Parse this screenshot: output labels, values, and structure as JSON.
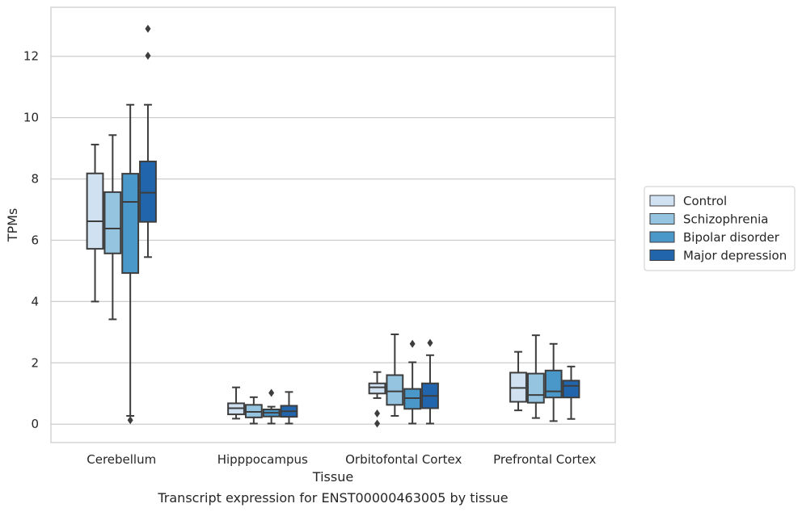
{
  "chart_data": {
    "type": "box",
    "caption": "Transcript expression for ENST00000463005 by tissue",
    "xlabel": "Tissue",
    "ylabel": "TPMs",
    "ylim": [
      -0.6,
      13.6
    ],
    "yticks": [
      0,
      2,
      4,
      6,
      8,
      10,
      12
    ],
    "grid": "horizontal",
    "legend_position": "right",
    "categories": [
      "Cerebellum",
      "Hipppocampus",
      "Orbitofontal Cortex",
      "Prefrontal Cortex"
    ],
    "series": [
      {
        "name": "Control",
        "color": "#d0e1f2",
        "boxes": [
          {
            "whisker_low": 4.0,
            "q1": 5.72,
            "median": 6.62,
            "q3": 8.18,
            "whisker_high": 9.12,
            "outliers": []
          },
          {
            "whisker_low": 0.18,
            "q1": 0.32,
            "median": 0.52,
            "q3": 0.68,
            "whisker_high": 1.2,
            "outliers": []
          },
          {
            "whisker_low": 0.85,
            "q1": 1.0,
            "median": 1.2,
            "q3": 1.33,
            "whisker_high": 1.7,
            "outliers": [
              0.35,
              0.02
            ]
          },
          {
            "whisker_low": 0.45,
            "q1": 0.73,
            "median": 1.18,
            "q3": 1.68,
            "whisker_high": 2.36,
            "outliers": []
          }
        ]
      },
      {
        "name": "Schizophrenia",
        "color": "#94c4df",
        "boxes": [
          {
            "whisker_low": 3.42,
            "q1": 5.57,
            "median": 6.38,
            "q3": 7.57,
            "whisker_high": 9.43,
            "outliers": []
          },
          {
            "whisker_low": 0.02,
            "q1": 0.22,
            "median": 0.4,
            "q3": 0.63,
            "whisker_high": 0.88,
            "outliers": []
          },
          {
            "whisker_low": 0.27,
            "q1": 0.63,
            "median": 1.07,
            "q3": 1.6,
            "whisker_high": 2.93,
            "outliers": []
          },
          {
            "whisker_low": 0.2,
            "q1": 0.7,
            "median": 0.95,
            "q3": 1.65,
            "whisker_high": 2.9,
            "outliers": []
          }
        ]
      },
      {
        "name": "Bipolar disorder",
        "color": "#4a98c9",
        "boxes": [
          {
            "whisker_low": 0.27,
            "q1": 4.93,
            "median": 7.25,
            "q3": 8.17,
            "whisker_high": 10.42,
            "outliers": [
              0.13
            ]
          },
          {
            "whisker_low": 0.02,
            "q1": 0.25,
            "median": 0.37,
            "q3": 0.48,
            "whisker_high": 0.57,
            "outliers": [
              1.02
            ]
          },
          {
            "whisker_low": 0.02,
            "q1": 0.5,
            "median": 0.85,
            "q3": 1.15,
            "whisker_high": 2.02,
            "outliers": [
              2.62
            ]
          },
          {
            "whisker_low": 0.1,
            "q1": 0.87,
            "median": 1.07,
            "q3": 1.75,
            "whisker_high": 2.62,
            "outliers": []
          }
        ]
      },
      {
        "name": "Major depression",
        "color": "#2166ac",
        "boxes": [
          {
            "whisker_low": 5.45,
            "q1": 6.6,
            "median": 7.55,
            "q3": 8.57,
            "whisker_high": 10.42,
            "outliers": [
              12.02,
              12.9
            ]
          },
          {
            "whisker_low": 0.02,
            "q1": 0.24,
            "median": 0.42,
            "q3": 0.6,
            "whisker_high": 1.05,
            "outliers": []
          },
          {
            "whisker_low": 0.02,
            "q1": 0.52,
            "median": 0.92,
            "q3": 1.33,
            "whisker_high": 2.25,
            "outliers": [
              2.65
            ]
          },
          {
            "whisker_low": 0.17,
            "q1": 0.87,
            "median": 1.25,
            "q3": 1.42,
            "whisker_high": 1.88,
            "outliers": []
          }
        ]
      }
    ]
  }
}
